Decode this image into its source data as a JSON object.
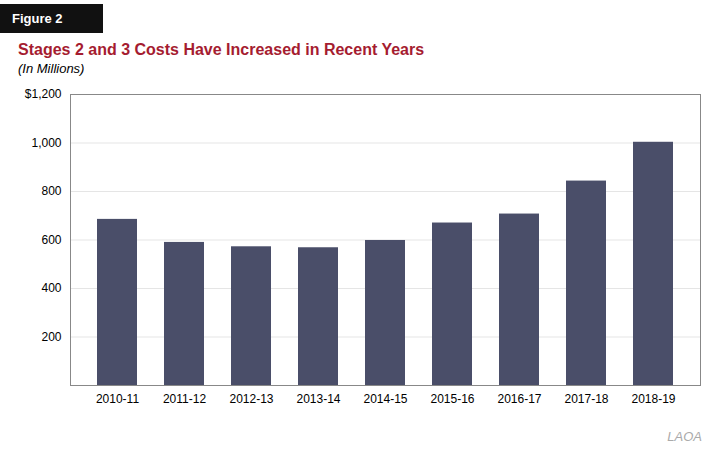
{
  "chart_data": {
    "type": "bar",
    "title": "Stages 2 and 3 Costs Have Increased in Recent Years",
    "subtitle": "(In Millions)",
    "figure_label": "Figure 2",
    "watermark": "LAOA",
    "categories": [
      "2010-11",
      "2011-12",
      "2012-13",
      "2013-14",
      "2014-15",
      "2015-16",
      "2016-17",
      "2017-18",
      "2018-19"
    ],
    "values": [
      685,
      590,
      572,
      568,
      598,
      670,
      707,
      843,
      1003
    ],
    "color": "#4a4e69",
    "ylim": [
      0,
      1200
    ],
    "yticks": [
      200,
      400,
      600,
      800,
      {
        "value": 1000,
        "label": "1,000"
      },
      {
        "value": 1200,
        "label": "$1,200"
      }
    ],
    "grid": true
  }
}
